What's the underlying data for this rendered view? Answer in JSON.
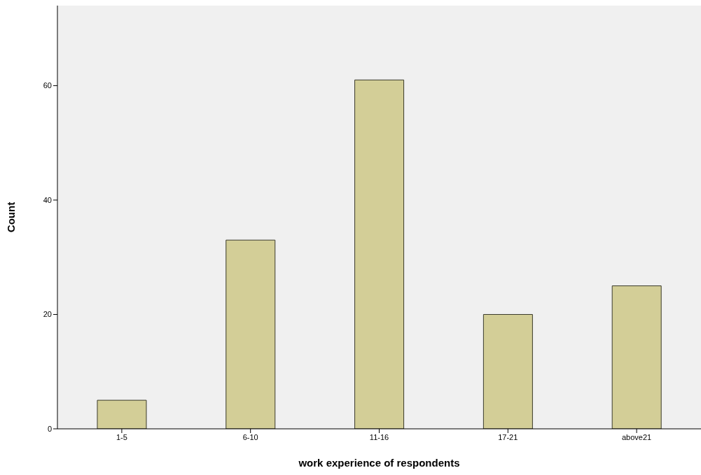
{
  "chart_data": {
    "type": "bar",
    "xlabel": "work experience of respondents",
    "ylabel": "Count",
    "categories": [
      "1-5",
      "6-10",
      "11-16",
      "17-21",
      "above21"
    ],
    "values": [
      5,
      33,
      61,
      20,
      25
    ],
    "color": "#d3ce97",
    "ylim": [
      0,
      74
    ],
    "yticks": [
      0,
      20,
      40,
      60
    ]
  }
}
